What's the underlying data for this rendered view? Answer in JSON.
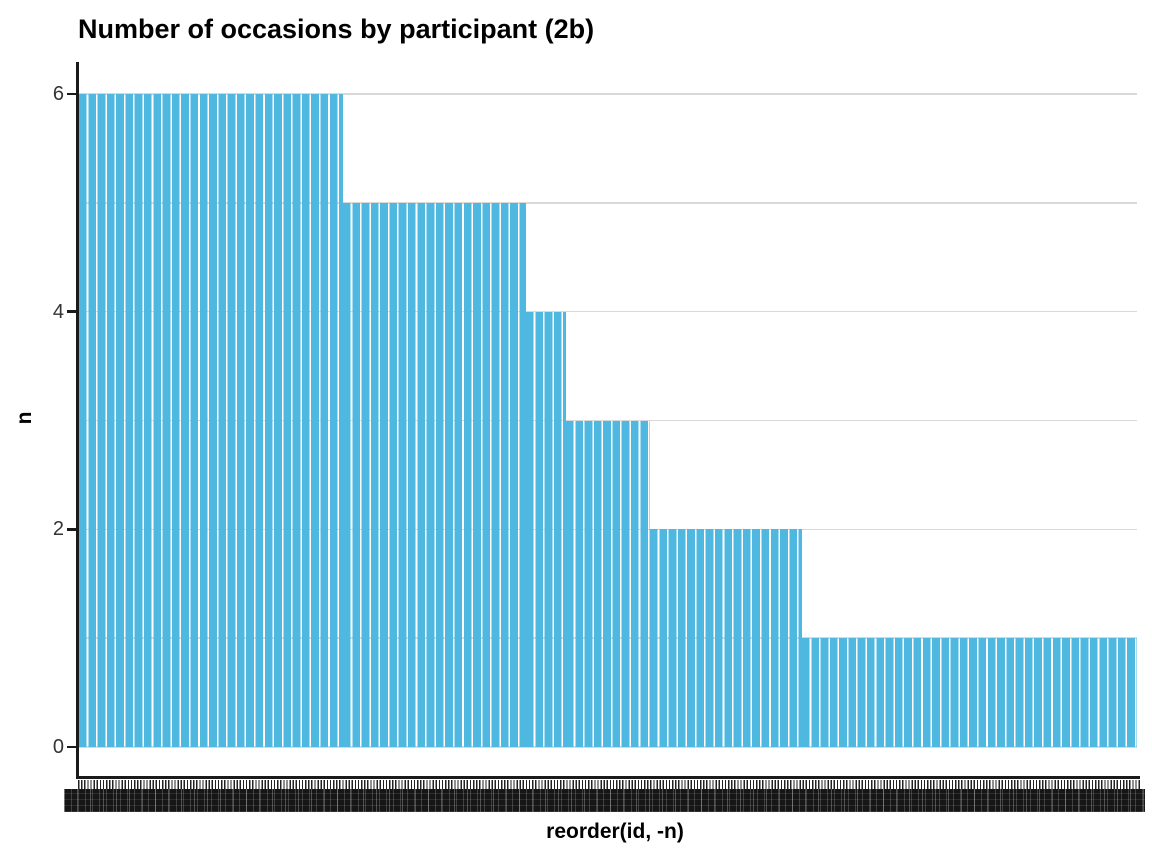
{
  "title": "Number of occasions by participant (2b)",
  "axes": {
    "x_title": "reorder(id, -n)",
    "y_title": "n",
    "y_tick_labels": [
      "0",
      "2",
      "4",
      "6"
    ],
    "x_tick_labels_readable": false
  },
  "colors": {
    "bar_fill": "#4FB8E0",
    "gridline": "#D9D9D9",
    "axis_line": "#1A1A1A",
    "tick_label": "#333333",
    "title": "#000000"
  },
  "chart_data": {
    "type": "bar",
    "title": "Number of occasions by participant (2b)",
    "xlabel": "reorder(id, -n)",
    "ylabel": "n",
    "ylim": [
      0,
      6
    ],
    "y_ticks": [
      0,
      2,
      4,
      6
    ],
    "gridlines_y": [
      0,
      1,
      2,
      3,
      4,
      5,
      6
    ],
    "grid": "horizontal-only",
    "legend": "none",
    "x_axis_note": "one bar per participant id, sorted by descending n; individual tick labels overplotted and illegible",
    "segments": [
      {
        "n": 6,
        "approx_participants": 85,
        "x_frac_start": 0.0,
        "x_frac_end": 0.2493
      },
      {
        "n": 5,
        "approx_participants": 59,
        "x_frac_start": 0.2493,
        "x_frac_end": 0.4221
      },
      {
        "n": 4,
        "approx_participants": 13,
        "x_frac_start": 0.4221,
        "x_frac_end": 0.4599
      },
      {
        "n": 3,
        "approx_participants": 27,
        "x_frac_start": 0.4599,
        "x_frac_end": 0.5401
      },
      {
        "n": 2,
        "approx_participants": 49,
        "x_frac_start": 0.5401,
        "x_frac_end": 0.6837
      },
      {
        "n": 1,
        "approx_participants": 108,
        "x_frac_start": 0.6837,
        "x_frac_end": 1.0
      }
    ]
  }
}
